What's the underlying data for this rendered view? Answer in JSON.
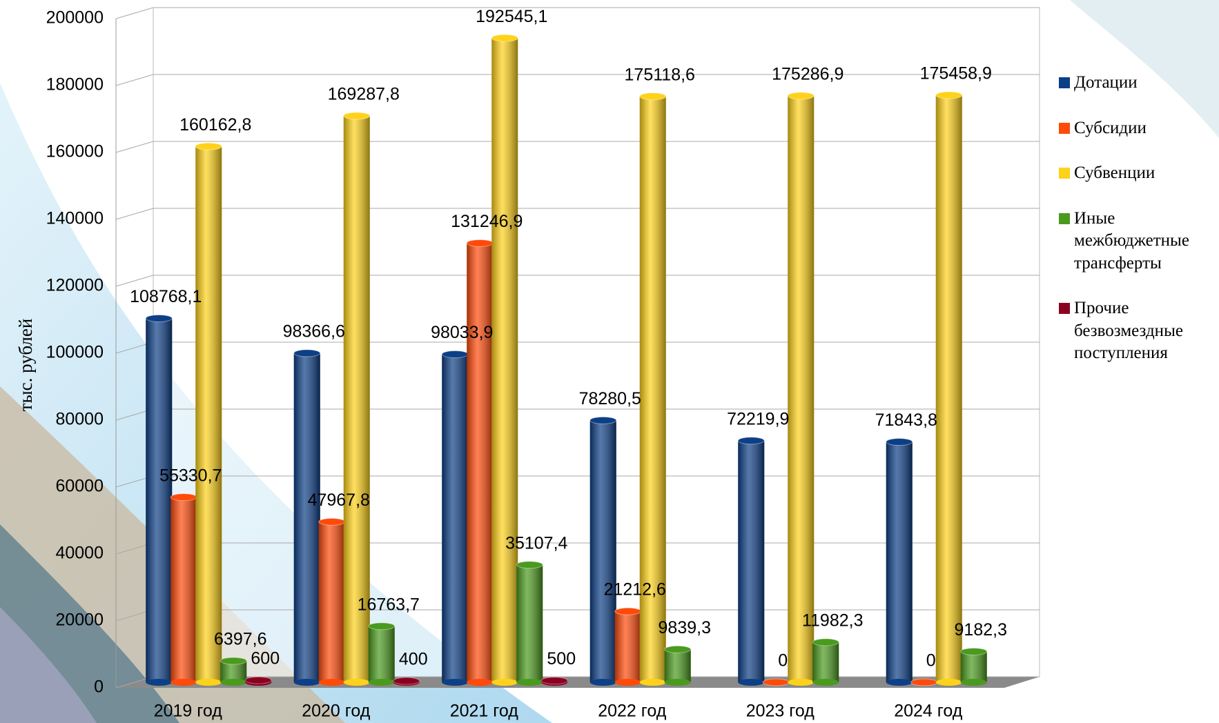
{
  "chart_data": {
    "type": "bar3d",
    "y_label": "тыс. рублей",
    "categories": [
      "2019 год",
      "2020 год",
      "2021 год",
      "2022 год",
      "2023 год",
      "2024 год"
    ],
    "ylim": [
      0,
      200000
    ],
    "yticks": [
      0,
      20000,
      40000,
      60000,
      80000,
      100000,
      120000,
      140000,
      160000,
      180000,
      200000
    ],
    "grid": true,
    "legend": "right",
    "series": [
      {
        "name": "Дотации",
        "color": "#0d3f86",
        "values": [
          108768.1,
          98366.6,
          98033.9,
          78280.5,
          72219.9,
          71843.8
        ],
        "value_labels": [
          "108768,1",
          "98366,6",
          "98033,9",
          "78280,5",
          "72219,9",
          "71843,8"
        ]
      },
      {
        "name": "Субсидии",
        "color": "#ff4a0a",
        "values": [
          55330.7,
          47967.8,
          131246.9,
          21212.6,
          0,
          0
        ],
        "value_labels": [
          "55330,7",
          "47967,8",
          "131246,9",
          "21212,6",
          "0",
          "0"
        ]
      },
      {
        "name": "Субвенции",
        "color": "#ffd21a",
        "values": [
          160162.8,
          169287.8,
          192545.1,
          175118.6,
          175286.9,
          175458.9
        ],
        "value_labels": [
          "160162,8",
          "169287,8",
          "192545,1",
          "175118,6",
          "175286,9",
          "175458,9"
        ]
      },
      {
        "name": "Иные межбюджетные трансферты",
        "color": "#4a9a1e",
        "values": [
          6397.6,
          16763.7,
          35107.4,
          9839.3,
          11982.3,
          9182.3
        ],
        "value_labels": [
          "6397,6",
          "16763,7",
          "35107,4",
          "9839,3",
          "11982,3",
          "9182,3"
        ]
      },
      {
        "name": "Прочие безвозмездные поступления",
        "color": "#8b0020",
        "values": [
          600,
          400,
          500,
          null,
          null,
          null
        ],
        "value_labels": [
          "600",
          "400",
          "500",
          null,
          null,
          null
        ]
      }
    ]
  }
}
